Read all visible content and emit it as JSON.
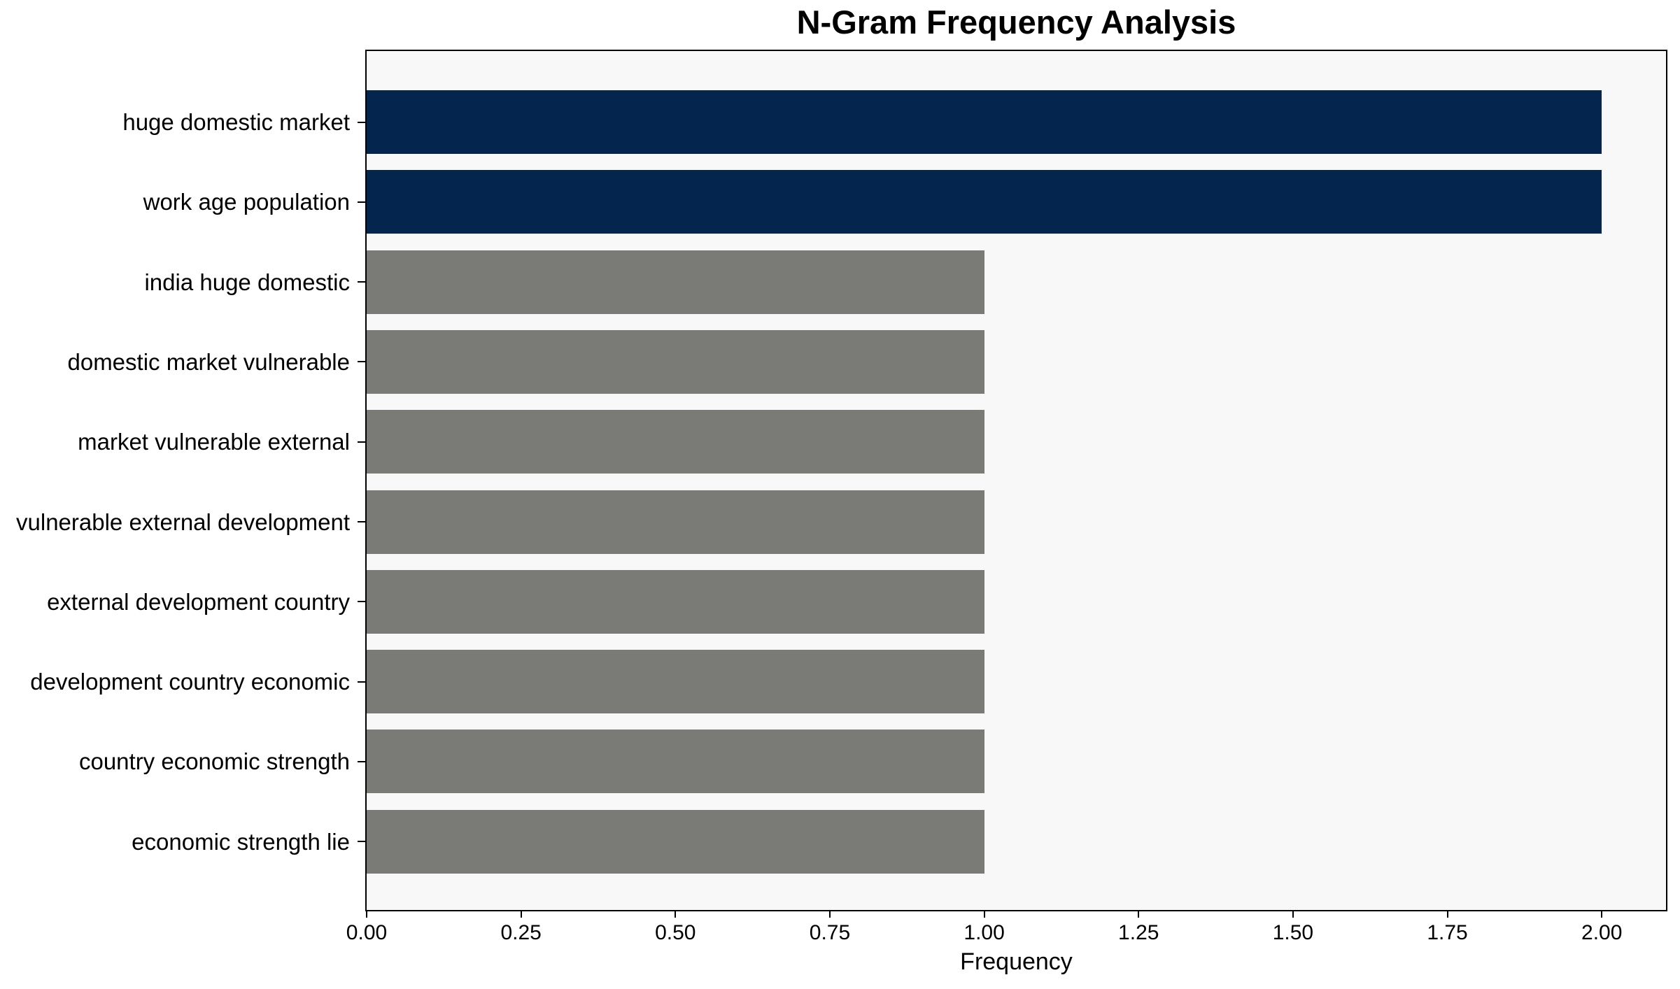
{
  "chart_data": {
    "type": "bar",
    "orientation": "horizontal",
    "title": "N-Gram Frequency Analysis",
    "xlabel": "Frequency",
    "ylabel": "",
    "categories": [
      "huge domestic market",
      "work age population",
      "india huge domestic",
      "domestic market vulnerable",
      "market vulnerable external",
      "vulnerable external development",
      "external development country",
      "development country economic",
      "country economic strength",
      "economic strength lie"
    ],
    "values": [
      2,
      2,
      1,
      1,
      1,
      1,
      1,
      1,
      1,
      1
    ],
    "bar_colors": [
      "#03254e",
      "#03254e",
      "#7a7a76",
      "#7a7a76",
      "#7a7a76",
      "#7a7a76",
      "#7a7a76",
      "#7a7a76",
      "#7a7a76",
      "#7a7a76"
    ],
    "xlim": [
      0,
      2.104
    ],
    "xticks": [
      0,
      0.25,
      0.5,
      0.75,
      1.0,
      1.25,
      1.5,
      1.75,
      2.0
    ],
    "xtick_labels": [
      "0.00",
      "0.25",
      "0.50",
      "0.75",
      "1.00",
      "1.25",
      "1.50",
      "1.75",
      "2.00"
    ],
    "grid": false,
    "legend": null,
    "colors": {
      "highlight_bar": "#03254e",
      "regular_bar": "#7a7a76",
      "plot_background": "#f8f8f8",
      "figure_background": "#ffffff",
      "spine": "#000000",
      "text": "#000000"
    }
  }
}
